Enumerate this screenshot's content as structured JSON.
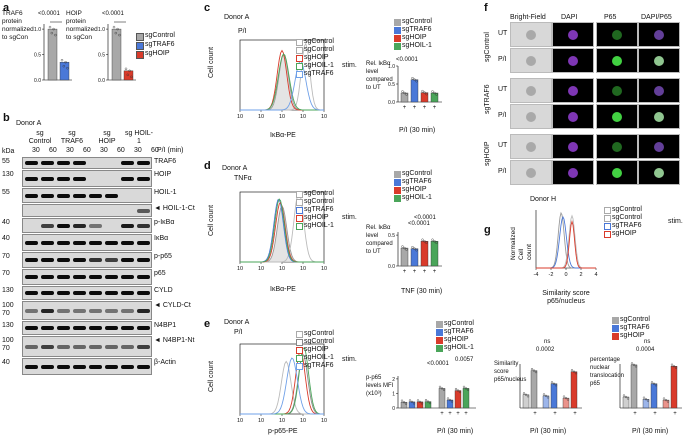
{
  "colors": {
    "gray": "#a8a8a8",
    "blue": "#4a78d8",
    "red": "#d93b2b",
    "green": "#4aa55a",
    "lightblue": "#6fa0e8"
  },
  "panels": {
    "a": "a",
    "b": "b",
    "c": "c",
    "d": "d",
    "e": "e",
    "f": "f",
    "g": "g"
  },
  "panel_a": {
    "pval": "<0.0001",
    "ylabel1": "TRAF6 protein normalized to sgCon",
    "ylabel2": "HOIP protein normalized to sgCon",
    "ticks": [
      "0.0",
      "0.5",
      "1.0"
    ],
    "legend": [
      "sgControl",
      "sgTRAF6",
      "sgHOIP"
    ],
    "chart_data": [
      {
        "type": "bar",
        "categories": [
          "sgControl",
          "sgTRAF6"
        ],
        "values": [
          1.0,
          0.35
        ],
        "ylim": [
          0,
          1.1
        ]
      },
      {
        "type": "bar",
        "categories": [
          "sgControl",
          "sgHOIP"
        ],
        "values": [
          1.0,
          0.18
        ],
        "ylim": [
          0,
          1.1
        ]
      }
    ]
  },
  "panel_b": {
    "donor": "Donor A",
    "groups": [
      "sg Control",
      "sg TRAF6",
      "sg HOIP",
      "sg HOIL-1"
    ],
    "times": [
      "30",
      "60",
      "30",
      "60",
      "30",
      "60",
      "30",
      "60"
    ],
    "pi": "P/I (min)",
    "kda": "kDa",
    "rows": [
      {
        "mw": "55",
        "mw2": "",
        "label": "TRAF6"
      },
      {
        "mw": "130",
        "mw2": "",
        "label": "HOIP"
      },
      {
        "mw": "55",
        "mw2": "",
        "label": "HOIL-1"
      },
      {
        "mw": "",
        "mw2": "",
        "label": "◄ HOIL-1-Ct"
      },
      {
        "mw": "40",
        "mw2": "",
        "label": "p-IκBα"
      },
      {
        "mw": "40",
        "mw2": "",
        "label": "IκBα"
      },
      {
        "mw": "70",
        "mw2": "",
        "label": "p-p65"
      },
      {
        "mw": "70",
        "mw2": "",
        "label": "p65"
      },
      {
        "mw": "130",
        "mw2": "",
        "label": "CYLD"
      },
      {
        "mw": "100",
        "mw2": "70",
        "label": "◄ CYLD-Ct"
      },
      {
        "mw": "130",
        "mw2": "",
        "label": "N4BP1"
      },
      {
        "mw": "100",
        "mw2": "70",
        "label": "◄ N4BP1-Nt"
      },
      {
        "mw": "40",
        "mw2": "",
        "label": "β-Actin"
      }
    ]
  },
  "panel_c": {
    "donor": "Donor A",
    "stim": "P/I",
    "legend": [
      "sgControl",
      "sgControl",
      "sgHOIP",
      "sgHOIL-1",
      "sgTRAF6"
    ],
    "stim_label": "stim.",
    "xlabel": "IκBα-PE",
    "ylabel": "Cell count",
    "xticks": [
      "10",
      "10",
      "10",
      "10",
      "10"
    ],
    "bar_legend": [
      "sgControl",
      "sgTRAF6",
      "sgHOIP",
      "sgHOIL-1"
    ],
    "bar_ylabel": "Rel. IκBα level compared to UT",
    "bar_xlabel": "P/I (30 min)",
    "pval": "<0.0001",
    "plus": [
      "+",
      "+",
      "+",
      "+"
    ],
    "ticks": [
      "0.0",
      "0.5",
      "1.0"
    ],
    "chart_data": {
      "type": "bar",
      "categories": [
        "sgControl",
        "sgTRAF6",
        "sgHOIP",
        "sgHOIL-1"
      ],
      "values": [
        0.25,
        0.62,
        0.26,
        0.25
      ],
      "ylim": [
        0,
        1.0
      ]
    }
  },
  "panel_d": {
    "donor": "Donor A",
    "stim": "TNFα",
    "legend": [
      "sgControl",
      "sgControl",
      "sgTRAF6",
      "sgHOIP",
      "sgHOIL-1"
    ],
    "stim_label": "stim.",
    "xlabel": "IκBα-PE",
    "ylabel": "Cell count",
    "bar_legend": [
      "sgControl",
      "sgTRAF6",
      "sgHOIP",
      "sgHOIL-1"
    ],
    "bar_ylabel": "Rel. IκBα level compared to UT",
    "bar_xlabel": "TNF (30 min)",
    "pvals": [
      "<0.0001",
      "<0.0001"
    ],
    "plus": [
      "+",
      "+",
      "+",
      "+"
    ],
    "ticks": [
      "0.0",
      "0.5"
    ],
    "chart_data": {
      "type": "bar",
      "categories": [
        "sgControl",
        "sgTRAF6",
        "sgHOIP",
        "sgHOIL-1"
      ],
      "values": [
        0.29,
        0.28,
        0.4,
        0.4
      ],
      "ylim": [
        0,
        0.55
      ]
    }
  },
  "panel_e": {
    "donor": "Donor A",
    "stim": "P/I",
    "legend": [
      "sgControl",
      "sgControl",
      "sgHOIP",
      "sgHOIL-1",
      "sgTRAF6"
    ],
    "stim_label": "stim.",
    "xlabel": "p-p65-PE",
    "ylabel": "Cell count",
    "bar_legend": [
      "sgControl",
      "sgTRAF6",
      "sgHOIP",
      "sgHOIL-1"
    ],
    "bar_ylabel": "p-p65 levels MFI (x10³)",
    "bar_xlabel": "P/I (30 min)",
    "pvals": [
      "<0.0001",
      "0.0057"
    ],
    "plus": [
      "+",
      "+",
      "+",
      "+"
    ],
    "ticks": [
      "0",
      "1",
      "2"
    ],
    "chart_data": {
      "type": "bar",
      "categories": [
        "sgControl",
        "sgTRAF6",
        "sgHOIP",
        "sgHOIL-1"
      ],
      "series": [
        {
          "name": "UT",
          "values": [
            0.4,
            0.42,
            0.42,
            0.44
          ]
        },
        {
          "name": "P/I (30 min)",
          "values": [
            1.35,
            0.55,
            1.2,
            1.35
          ]
        }
      ],
      "ylim": [
        0,
        2.2
      ]
    }
  },
  "panel_f": {
    "cols": [
      "Bright-Field",
      "DAPI",
      "P65",
      "DAPI/P65"
    ],
    "groups": [
      "sgControl",
      "sgTRAF6",
      "sgHOIP"
    ],
    "conds": [
      "UT",
      "P/I",
      "UT",
      "P/I",
      "UT",
      "P/I"
    ]
  },
  "panel_g": {
    "donor": "Donor H",
    "legend": [
      "sgControl",
      "sgControl",
      "sgTRAF6",
      "sgHOIP"
    ],
    "stim_label": "stim.",
    "xlabel": "Similarity score p65/nucleus",
    "ylabel": "Normalized Cell count",
    "xticks": [
      "-4",
      "-2",
      "0",
      "2",
      "4"
    ],
    "bar_legend": [
      "sgControl",
      "sgTRAF6",
      "sgHOIP"
    ],
    "bar1_ylabel": "Similarity score p65/nucleus",
    "bar2_ylabel": "percentage nuclear translocation p65",
    "bar_xlabel": "P/I (30 min)",
    "bar1_pvals": [
      "ns",
      "0.0002"
    ],
    "bar2_pvals": [
      "ns",
      "0.0004"
    ],
    "plus": [
      "+",
      "+",
      "+"
    ],
    "chart_data": [
      {
        "type": "bar",
        "categories": [
          "sgControl",
          "sgTRAF6",
          "sgHOIP"
        ],
        "series": [
          {
            "name": "UT",
            "values": [
              0.6,
              0.55,
              0.45
            ]
          },
          {
            "name": "P/I",
            "values": [
              1.7,
              1.1,
              1.65
            ]
          }
        ],
        "ylim": [
          0,
          2.0
        ]
      },
      {
        "type": "bar",
        "categories": [
          "sgControl",
          "sgTRAF6",
          "sgHOIP"
        ],
        "series": [
          {
            "name": "UT",
            "values": [
              25,
              20,
              18
            ]
          },
          {
            "name": "P/I",
            "values": [
              98,
              55,
              95
            ]
          }
        ],
        "ylim": [
          0,
          100
        ]
      }
    ]
  }
}
